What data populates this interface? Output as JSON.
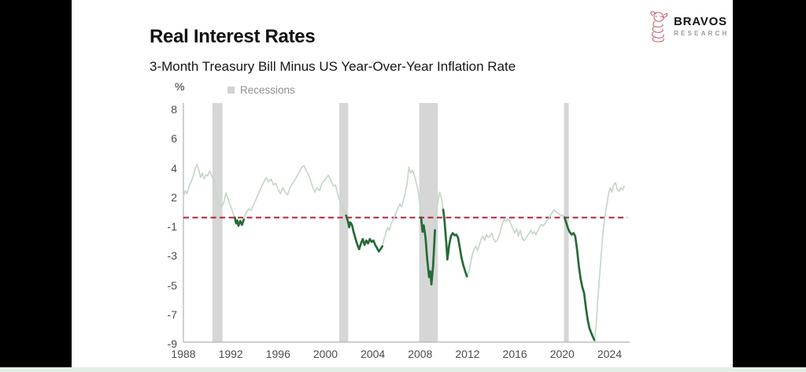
{
  "header": {
    "title": "Real Interest Rates",
    "subtitle": "3-Month Treasury Bill Minus US Year-Over-Year Inflation Rate"
  },
  "logo": {
    "name": "BRAVOS",
    "sub": "RESEARCH",
    "icon_color": "#c0616f"
  },
  "chart": {
    "unit_label": "%",
    "legend": {
      "recessions_label": "Recessions",
      "swatch_color": "#d2d2d2"
    },
    "y_ticks": [
      "8",
      "6",
      "4",
      "2",
      "-1",
      "-3",
      "-5",
      "-7",
      "-9"
    ],
    "x_ticks": [
      "1988",
      "1992",
      "1996",
      "2000",
      "2004",
      "2008",
      "2012",
      "2016",
      "2020",
      "2024"
    ],
    "colors": {
      "line_light": "#c7d7c8",
      "line_dark": "#266b36",
      "zero_line": "#b32038",
      "axis": "#b0b0b0",
      "recession_band": "#d6d6d6"
    }
  },
  "chart_data": {
    "type": "line",
    "title": "Real Interest Rates",
    "subtitle": "3-Month Treasury Bill Minus US Year-Over-Year Inflation Rate",
    "ylabel": "%",
    "x_range": [
      1988,
      2025.3
    ],
    "y_axis_tick_values": [
      8,
      6,
      4,
      2,
      -1,
      -3,
      -5,
      -7,
      -9
    ],
    "zero_reference_line": 0,
    "grid": false,
    "legend_position": "top-left",
    "recessions": [
      [
        1990.45,
        1991.3
      ],
      [
        2001.17,
        2001.92
      ],
      [
        2007.92,
        2009.5
      ],
      [
        2020.15,
        2020.55
      ]
    ],
    "negative_highlight_intervals": [
      [
        1992.3,
        1993.17
      ],
      [
        2001.7,
        2004.85
      ],
      [
        2008.05,
        2009.3
      ],
      [
        2009.93,
        2012.08
      ],
      [
        2020.18,
        2022.75
      ]
    ],
    "series": [
      {
        "name": "real_interest_rate",
        "points": [
          [
            1988.0,
            2.1
          ],
          [
            1988.15,
            2.5
          ],
          [
            1988.3,
            2.3
          ],
          [
            1988.45,
            2.7
          ],
          [
            1988.6,
            3.0
          ],
          [
            1988.75,
            3.3
          ],
          [
            1988.9,
            3.7
          ],
          [
            1989.0,
            4.0
          ],
          [
            1989.15,
            4.3
          ],
          [
            1989.3,
            3.9
          ],
          [
            1989.45,
            3.4
          ],
          [
            1989.6,
            3.7
          ],
          [
            1989.75,
            3.3
          ],
          [
            1989.9,
            3.6
          ],
          [
            1990.05,
            3.5
          ],
          [
            1990.2,
            3.85
          ],
          [
            1990.35,
            3.6
          ],
          [
            1990.5,
            3.3
          ],
          [
            1990.65,
            2.8
          ],
          [
            1990.8,
            2.2
          ],
          [
            1990.95,
            1.7
          ],
          [
            1991.1,
            1.35
          ],
          [
            1991.25,
            1.1
          ],
          [
            1991.45,
            1.7
          ],
          [
            1991.6,
            2.35
          ],
          [
            1991.75,
            2.0
          ],
          [
            1991.9,
            1.4
          ],
          [
            1992.05,
            1.0
          ],
          [
            1992.2,
            0.4
          ],
          [
            1992.35,
            0.0
          ],
          [
            1992.45,
            -0.6
          ],
          [
            1992.55,
            -0.3
          ],
          [
            1992.65,
            -0.85
          ],
          [
            1992.8,
            -0.35
          ],
          [
            1992.95,
            -0.75
          ],
          [
            1993.1,
            -0.2
          ],
          [
            1993.25,
            0.4
          ],
          [
            1993.4,
            0.7
          ],
          [
            1993.55,
            0.9
          ],
          [
            1993.7,
            0.7
          ],
          [
            1993.85,
            1.1
          ],
          [
            1994.0,
            1.5
          ],
          [
            1994.2,
            2.0
          ],
          [
            1994.4,
            2.4
          ],
          [
            1994.6,
            2.8
          ],
          [
            1994.8,
            3.1
          ],
          [
            1995.0,
            3.4
          ],
          [
            1995.2,
            3.1
          ],
          [
            1995.4,
            3.3
          ],
          [
            1995.6,
            2.9
          ],
          [
            1995.8,
            3.0
          ],
          [
            1996.0,
            2.6
          ],
          [
            1996.2,
            2.3
          ],
          [
            1996.4,
            2.7
          ],
          [
            1996.6,
            2.4
          ],
          [
            1996.8,
            2.2
          ],
          [
            1997.0,
            2.7
          ],
          [
            1997.2,
            3.0
          ],
          [
            1997.4,
            3.2
          ],
          [
            1997.6,
            3.5
          ],
          [
            1997.8,
            3.8
          ],
          [
            1998.0,
            4.1
          ],
          [
            1998.2,
            4.2
          ],
          [
            1998.35,
            3.9
          ],
          [
            1998.5,
            3.7
          ],
          [
            1998.7,
            3.3
          ],
          [
            1998.9,
            2.8
          ],
          [
            1999.1,
            2.4
          ],
          [
            1999.3,
            2.7
          ],
          [
            1999.5,
            2.5
          ],
          [
            1999.7,
            3.0
          ],
          [
            1999.9,
            3.2
          ],
          [
            2000.1,
            3.4
          ],
          [
            2000.25,
            3.55
          ],
          [
            2000.4,
            3.3
          ],
          [
            2000.55,
            3.0
          ],
          [
            2000.7,
            2.8
          ],
          [
            2000.85,
            2.9
          ],
          [
            2001.0,
            2.4
          ],
          [
            2001.15,
            1.9
          ],
          [
            2001.3,
            1.5
          ],
          [
            2001.45,
            1.0
          ],
          [
            2001.6,
            0.6
          ],
          [
            2001.75,
            0.2
          ],
          [
            2001.9,
            -0.4
          ],
          [
            2002.0,
            -1.0
          ],
          [
            2002.1,
            -0.5
          ],
          [
            2002.25,
            -0.8
          ],
          [
            2002.4,
            -1.4
          ],
          [
            2002.55,
            -1.8
          ],
          [
            2002.7,
            -2.2
          ],
          [
            2002.85,
            -2.5
          ],
          [
            2003.0,
            -2.1
          ],
          [
            2003.15,
            -1.8
          ],
          [
            2003.3,
            -2.2
          ],
          [
            2003.45,
            -1.9
          ],
          [
            2003.6,
            -2.1
          ],
          [
            2003.75,
            -1.8
          ],
          [
            2003.9,
            -2.0
          ],
          [
            2004.05,
            -1.9
          ],
          [
            2004.2,
            -2.2
          ],
          [
            2004.35,
            -2.4
          ],
          [
            2004.5,
            -2.65
          ],
          [
            2004.65,
            -2.5
          ],
          [
            2004.8,
            -2.3
          ],
          [
            2004.95,
            -1.8
          ],
          [
            2005.1,
            -1.4
          ],
          [
            2005.25,
            -1.0
          ],
          [
            2005.4,
            -1.2
          ],
          [
            2005.55,
            -0.6
          ],
          [
            2005.7,
            -0.3
          ],
          [
            2005.85,
            0.1
          ],
          [
            2006.0,
            0.6
          ],
          [
            2006.15,
            1.0
          ],
          [
            2006.3,
            1.4
          ],
          [
            2006.45,
            1.1
          ],
          [
            2006.6,
            1.8
          ],
          [
            2006.75,
            2.4
          ],
          [
            2006.9,
            3.0
          ],
          [
            2007.05,
            4.1
          ],
          [
            2007.2,
            3.7
          ],
          [
            2007.35,
            3.9
          ],
          [
            2007.5,
            3.6
          ],
          [
            2007.65,
            3.1
          ],
          [
            2007.8,
            2.6
          ],
          [
            2007.95,
            1.6
          ],
          [
            2008.08,
            0.0
          ],
          [
            2008.2,
            -1.3
          ],
          [
            2008.3,
            -0.8
          ],
          [
            2008.45,
            -1.7
          ],
          [
            2008.6,
            -3.2
          ],
          [
            2008.75,
            -4.4
          ],
          [
            2008.85,
            -4.0
          ],
          [
            2008.95,
            -4.9
          ],
          [
            2009.1,
            -3.6
          ],
          [
            2009.25,
            -1.2
          ],
          [
            2009.35,
            0.6
          ],
          [
            2009.5,
            1.6
          ],
          [
            2009.65,
            2.4
          ],
          [
            2009.8,
            2.0
          ],
          [
            2009.95,
            0.8
          ],
          [
            2010.05,
            -0.2
          ],
          [
            2010.2,
            -2.0
          ],
          [
            2010.3,
            -3.2
          ],
          [
            2010.45,
            -2.2
          ],
          [
            2010.6,
            -1.6
          ],
          [
            2010.75,
            -1.4
          ],
          [
            2010.9,
            -1.55
          ],
          [
            2011.05,
            -1.5
          ],
          [
            2011.2,
            -1.7
          ],
          [
            2011.35,
            -2.4
          ],
          [
            2011.5,
            -3.1
          ],
          [
            2011.65,
            -3.6
          ],
          [
            2011.8,
            -4.0
          ],
          [
            2011.95,
            -4.35
          ],
          [
            2012.1,
            -4.1
          ],
          [
            2012.25,
            -3.5
          ],
          [
            2012.4,
            -2.9
          ],
          [
            2012.55,
            -2.5
          ],
          [
            2012.7,
            -2.3
          ],
          [
            2012.85,
            -2.6
          ],
          [
            2013.0,
            -2.2
          ],
          [
            2013.15,
            -1.8
          ],
          [
            2013.3,
            -1.6
          ],
          [
            2013.45,
            -1.9
          ],
          [
            2013.6,
            -1.5
          ],
          [
            2013.75,
            -1.7
          ],
          [
            2013.9,
            -1.6
          ],
          [
            2014.05,
            -1.4
          ],
          [
            2014.2,
            -1.8
          ],
          [
            2014.35,
            -2.0
          ],
          [
            2014.5,
            -1.9
          ],
          [
            2014.65,
            -1.6
          ],
          [
            2014.8,
            -1.2
          ],
          [
            2014.95,
            -0.6
          ],
          [
            2015.1,
            -0.2
          ],
          [
            2015.25,
            -0.4
          ],
          [
            2015.4,
            -0.1
          ],
          [
            2015.55,
            -0.3
          ],
          [
            2015.7,
            -0.8
          ],
          [
            2015.85,
            -1.1
          ],
          [
            2016.0,
            -1.4
          ],
          [
            2016.15,
            -1.1
          ],
          [
            2016.3,
            -1.6
          ],
          [
            2016.45,
            -1.2
          ],
          [
            2016.6,
            -1.7
          ],
          [
            2016.75,
            -1.9
          ],
          [
            2016.9,
            -1.8
          ],
          [
            2017.05,
            -1.6
          ],
          [
            2017.2,
            -1.4
          ],
          [
            2017.35,
            -1.2
          ],
          [
            2017.5,
            -1.45
          ],
          [
            2017.65,
            -1.3
          ],
          [
            2017.8,
            -1.5
          ],
          [
            2017.95,
            -1.2
          ],
          [
            2018.1,
            -0.9
          ],
          [
            2018.25,
            -0.7
          ],
          [
            2018.4,
            -0.85
          ],
          [
            2018.55,
            -0.6
          ],
          [
            2018.7,
            -0.3
          ],
          [
            2018.85,
            -0.15
          ],
          [
            2019.0,
            0.2
          ],
          [
            2019.15,
            0.5
          ],
          [
            2019.3,
            0.8
          ],
          [
            2019.45,
            0.6
          ],
          [
            2019.6,
            0.5
          ],
          [
            2019.75,
            0.35
          ],
          [
            2019.9,
            0.15
          ],
          [
            2020.05,
            0.25
          ],
          [
            2020.2,
            0.0
          ],
          [
            2020.35,
            -0.6
          ],
          [
            2020.5,
            -1.1
          ],
          [
            2020.65,
            -1.35
          ],
          [
            2020.8,
            -1.5
          ],
          [
            2020.95,
            -1.4
          ],
          [
            2021.1,
            -1.6
          ],
          [
            2021.25,
            -2.5
          ],
          [
            2021.4,
            -3.6
          ],
          [
            2021.55,
            -4.5
          ],
          [
            2021.7,
            -5.1
          ],
          [
            2021.85,
            -5.5
          ],
          [
            2022.0,
            -6.5
          ],
          [
            2022.15,
            -7.3
          ],
          [
            2022.3,
            -7.9
          ],
          [
            2022.45,
            -8.2
          ],
          [
            2022.6,
            -8.5
          ],
          [
            2022.72,
            -8.7
          ],
          [
            2022.85,
            -7.8
          ],
          [
            2023.0,
            -6.0
          ],
          [
            2023.15,
            -4.4
          ],
          [
            2023.3,
            -2.8
          ],
          [
            2023.45,
            -1.3
          ],
          [
            2023.6,
            0.0
          ],
          [
            2023.75,
            1.2
          ],
          [
            2023.9,
            2.2
          ],
          [
            2024.05,
            2.7
          ],
          [
            2024.2,
            2.4
          ],
          [
            2024.35,
            2.9
          ],
          [
            2024.5,
            3.05
          ],
          [
            2024.65,
            2.6
          ],
          [
            2024.8,
            2.45
          ],
          [
            2024.95,
            2.7
          ],
          [
            2025.1,
            2.55
          ],
          [
            2025.25,
            2.8
          ]
        ]
      }
    ]
  }
}
